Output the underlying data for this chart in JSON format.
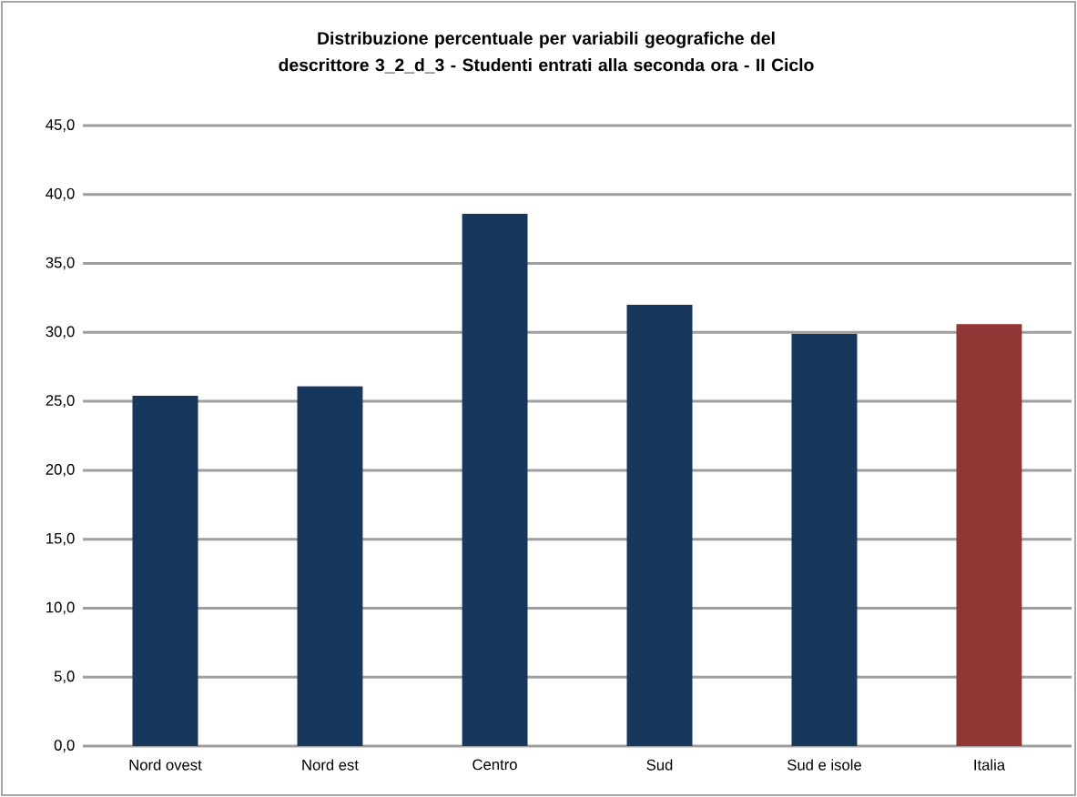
{
  "chart_data": {
    "type": "bar",
    "title": "Distribuzione percentuale per variabili geografiche del descrittore 3_2_d_3 - Studenti entrati alla seconda ora  - II Ciclo",
    "categories": [
      "Nord ovest",
      "Nord est",
      "Centro",
      "Sud",
      "Sud e isole",
      "Italia"
    ],
    "values": [
      25.4,
      26.1,
      38.6,
      32.0,
      29.9,
      30.6
    ],
    "colors": [
      "#18375c",
      "#18375c",
      "#18375c",
      "#18375c",
      "#18375c",
      "#923535"
    ],
    "ylim": [
      0,
      45
    ],
    "yticks": [
      {
        "value": 0,
        "label": "0,0"
      },
      {
        "value": 5,
        "label": "5,0"
      },
      {
        "value": 10,
        "label": "10,0"
      },
      {
        "value": 15,
        "label": "15,0"
      },
      {
        "value": 20,
        "label": "20,0"
      },
      {
        "value": 25,
        "label": "25,0"
      },
      {
        "value": 30,
        "label": "30,0"
      },
      {
        "value": 35,
        "label": "35,0"
      },
      {
        "value": 40,
        "label": "40,0"
      },
      {
        "value": 45,
        "label": "45,0"
      }
    ],
    "grid": "y"
  }
}
